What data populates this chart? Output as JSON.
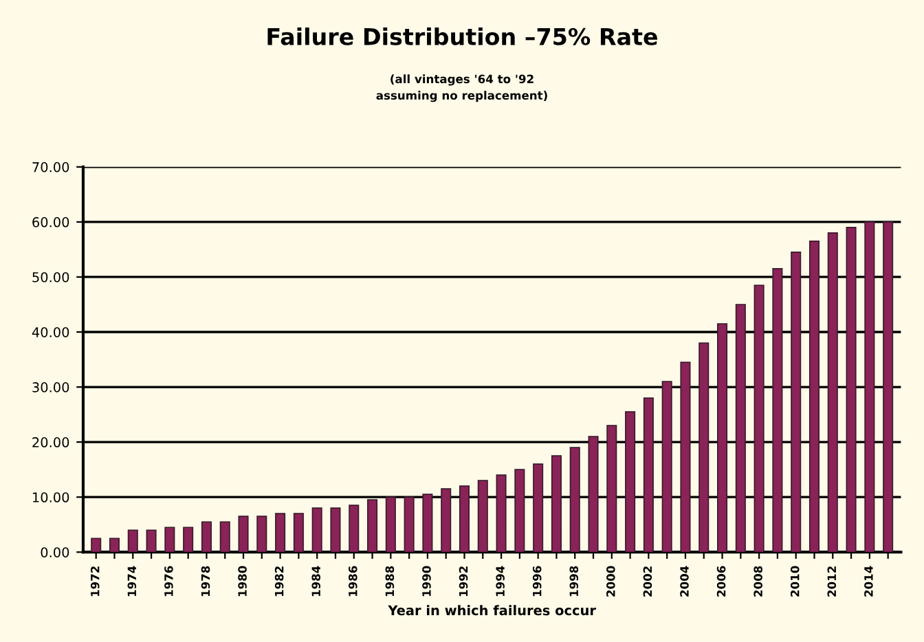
{
  "chart_data": {
    "type": "bar",
    "title": "Failure Distribution –75% Rate",
    "subtitle": "(all vintages '64 to '92\nassuming no replacement)",
    "xlabel": "Year in which failures occur",
    "categories": [
      "1972",
      null,
      "1974",
      null,
      "1976",
      null,
      "1978",
      null,
      "1980",
      null,
      "1982",
      null,
      "1984",
      null,
      "1986",
      null,
      "1988",
      null,
      "1990",
      null,
      "1992",
      null,
      "1994",
      null,
      "1996",
      null,
      "1998",
      null,
      "2000",
      null,
      "2002",
      null,
      "2004",
      null,
      "2006",
      null,
      "2008",
      null,
      "2010",
      null,
      "2012",
      null,
      "2014",
      null
    ],
    "values": [
      2.5,
      2.5,
      4,
      4,
      4.5,
      4.5,
      5.5,
      5.5,
      6.5,
      6.5,
      7,
      7,
      8,
      8,
      8.5,
      9.5,
      10,
      10,
      10.5,
      11.5,
      12,
      13,
      14,
      15,
      16,
      17.5,
      19,
      21,
      23,
      25.5,
      28,
      31,
      34.5,
      38,
      41.5,
      45,
      48.5,
      51.5,
      54.5,
      56.5,
      58,
      59,
      60,
      60
    ],
    "color": "#8a2358",
    "ylim": [
      0,
      70
    ],
    "yticks": [
      {
        "value": 0,
        "label": "0.00"
      },
      {
        "value": 10,
        "label": "10.00"
      },
      {
        "value": 20,
        "label": "20.00"
      },
      {
        "value": 30,
        "label": "30.00"
      },
      {
        "value": 40,
        "label": "40.00"
      },
      {
        "value": 50,
        "label": "50.00"
      },
      {
        "value": 60,
        "label": "60.00"
      },
      {
        "value": 70,
        "label": "70.00"
      }
    ],
    "grid": "y"
  }
}
